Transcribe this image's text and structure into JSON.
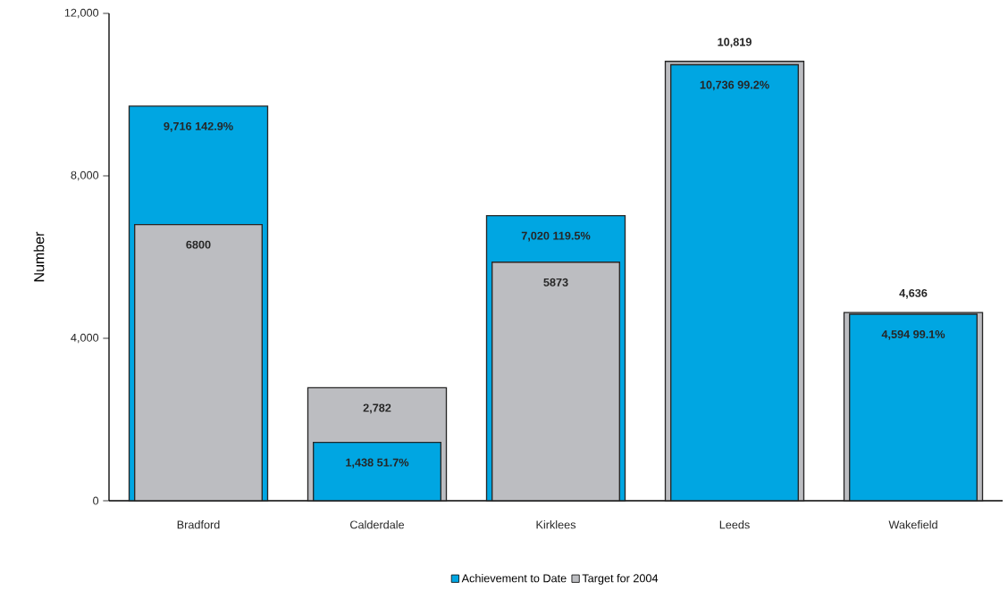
{
  "chart_data": {
    "type": "bar",
    "ylabel": "Number",
    "categories": [
      "Bradford",
      "Calderdale",
      "Kirklees",
      "Leeds",
      "Wakefield"
    ],
    "series": [
      {
        "name": "Achievement to Date",
        "color": "#00a6e2",
        "values": [
          9716,
          1438,
          7020,
          10736,
          4594
        ],
        "value_labels": [
          "9,716  142.9%",
          "1,438  51.7%",
          "7,020  119.5%",
          "10,736  99.2%",
          "4,594  99.1%"
        ]
      },
      {
        "name": "Target for 2004",
        "color": "#bcbdc1",
        "values": [
          6800,
          2782,
          5873,
          10819,
          4636
        ],
        "value_labels": [
          "6800",
          "2,782",
          "5873",
          "10,819",
          "4,636"
        ]
      }
    ],
    "ylim": [
      0,
      12000
    ],
    "yticks": [
      0,
      {
        "value": 4000,
        "label": "4,000"
      },
      {
        "value": 8000,
        "label": "8,000"
      },
      {
        "value": 12000,
        "label": "12,000"
      }
    ],
    "grid": false,
    "legend": "bottom"
  }
}
